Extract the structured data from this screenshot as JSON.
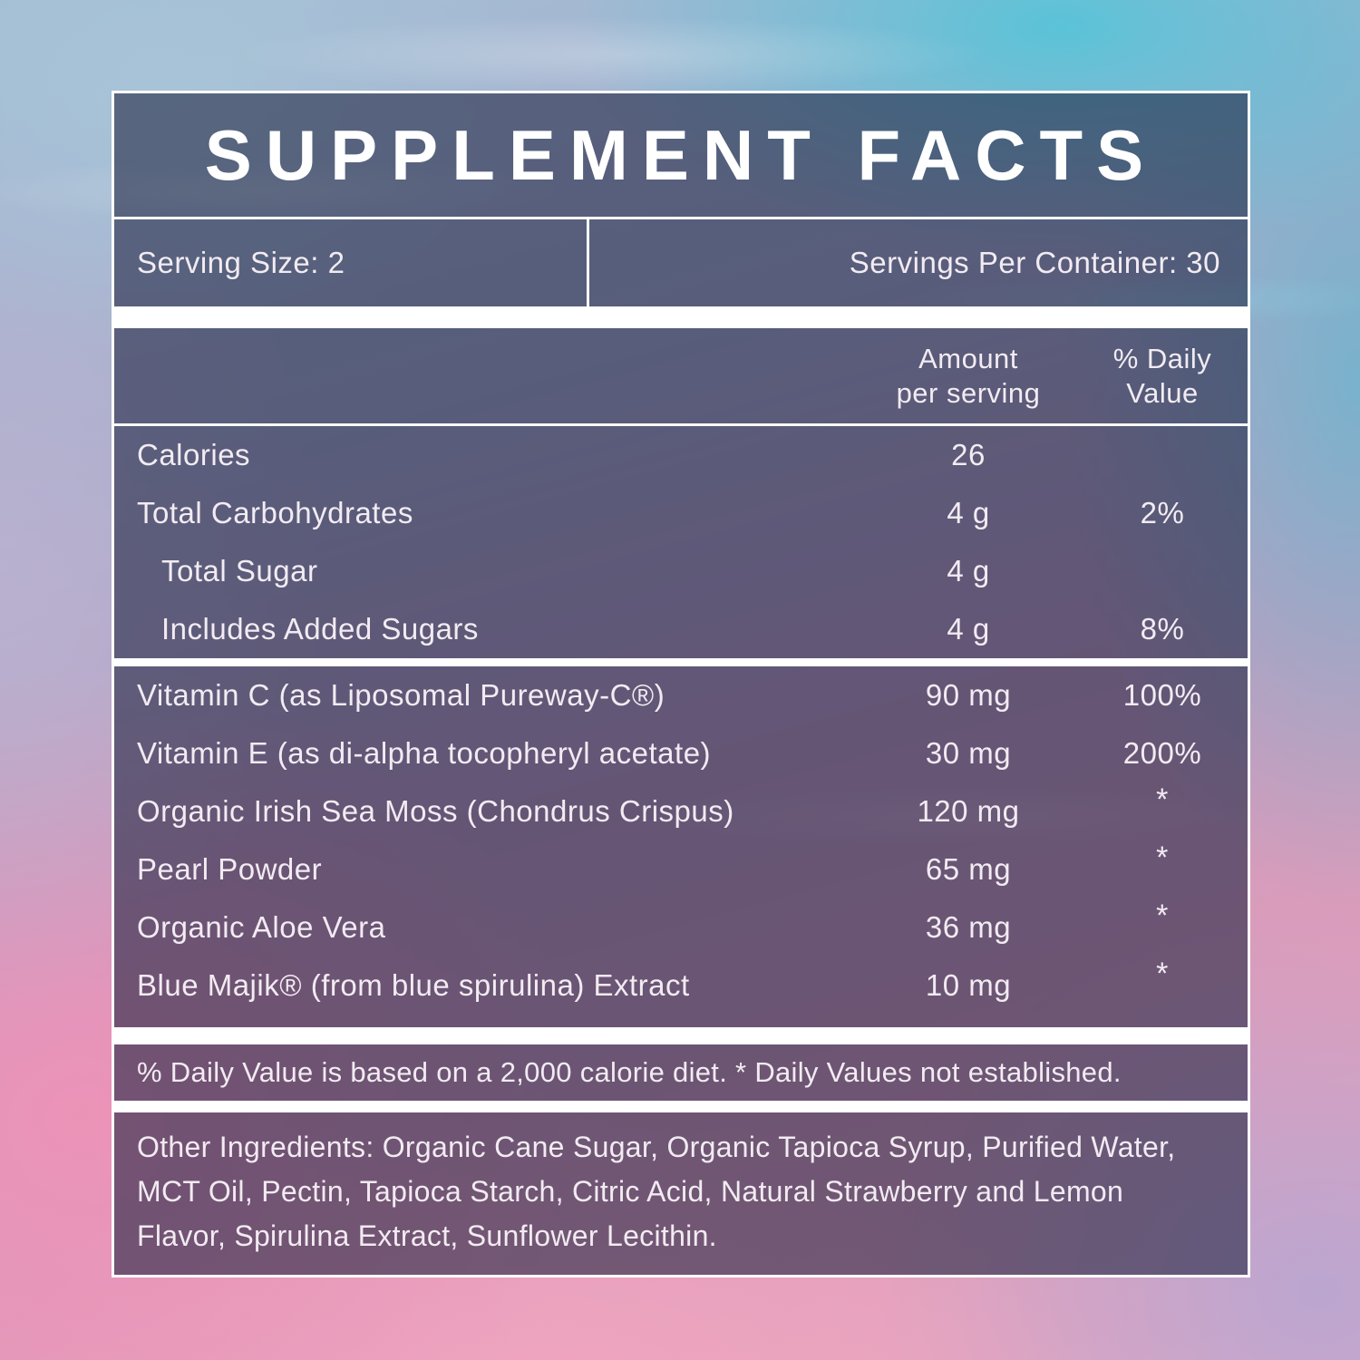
{
  "label": {
    "title": "SUPPLEMENT FACTS",
    "serving": {
      "size": "Serving Size: 2",
      "per_container": "Servings Per Container: 30"
    },
    "table": {
      "headers": {
        "amount": "Amount\nper serving",
        "daily_value": "% Daily\nValue"
      },
      "nutrient_rows": [
        {
          "name": "Calories",
          "amount": "26",
          "dv": ""
        },
        {
          "name": "Total Carbohydrates",
          "amount": "4 g",
          "dv": "2%"
        },
        {
          "name": "Total Sugar",
          "amount": "4 g",
          "dv": ""
        },
        {
          "name": "Includes Added Sugars",
          "amount": "4 g",
          "dv": "8%"
        }
      ],
      "ingredient_rows": [
        {
          "name": "Vitamin C (as Liposomal Pureway-C®)",
          "amount": "90 mg",
          "dv": "100%"
        },
        {
          "name": "Vitamin E (as di-alpha tocopheryl acetate)",
          "amount": "30 mg",
          "dv": "200%"
        },
        {
          "name": "Organic Irish Sea Moss (Chondrus Crispus)",
          "amount": "120 mg",
          "dv": "*"
        },
        {
          "name": "Pearl Powder",
          "amount": "65 mg",
          "dv": "*"
        },
        {
          "name": "Organic Aloe Vera",
          "amount": "36 mg",
          "dv": "*"
        },
        {
          "name": "Blue Majik® (from blue spirulina) Extract",
          "amount": "10 mg",
          "dv": "*"
        }
      ]
    },
    "footnote": "% Daily Value is based on a 2,000 calorie diet. * Daily Values not established.",
    "other_ingredients": "Other Ingredients: Organic Cane Sugar, Organic Tapioca Syrup, Purified Water, MCT Oil, Pectin, Tapioca Starch, Citric Acid, Natural Strawberry and Lemon Flavor, Spirulina Extract, Sunflower Lecithin."
  },
  "colors": {
    "panel_overlay": "rgba(30,34,64,0.58)",
    "text": "#f2ebf2",
    "divider": "#ffffff",
    "bg_pink": "#e79cba",
    "bg_cyan": "#56c4d8",
    "bg_blue": "#a3bdd4"
  }
}
